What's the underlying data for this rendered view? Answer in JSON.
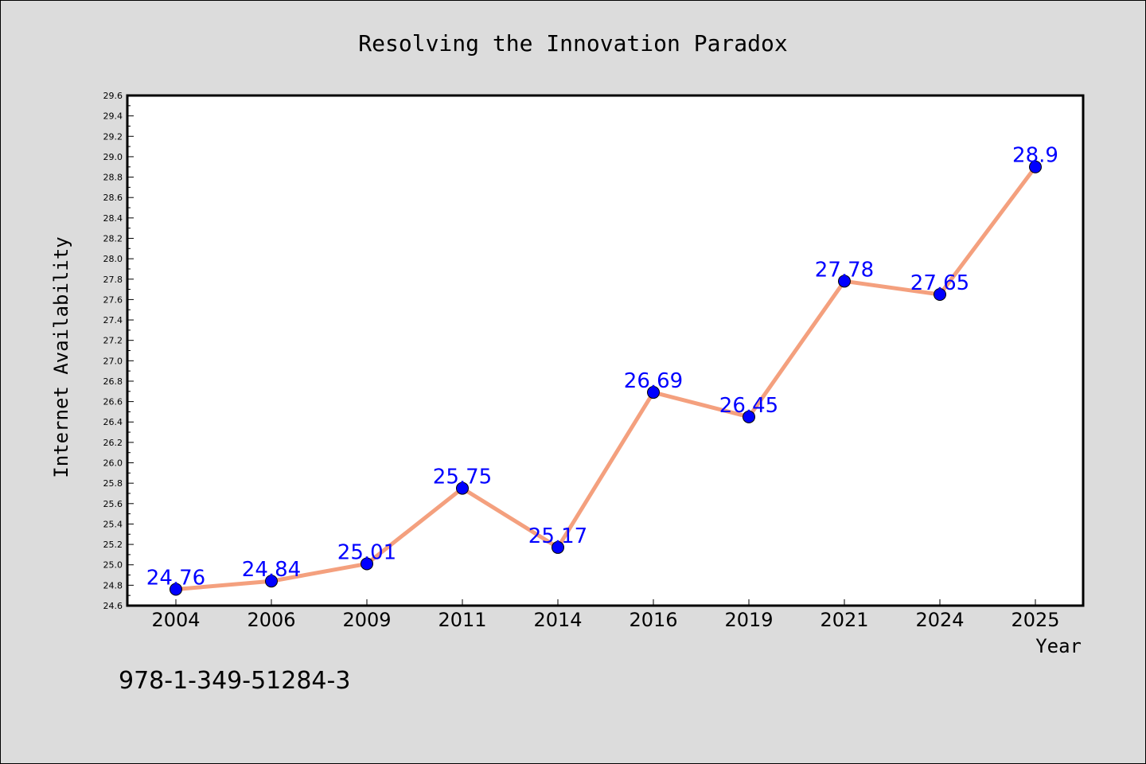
{
  "chart_data": {
    "type": "line",
    "title": "Resolving the Innovation Paradox",
    "xlabel": "Year",
    "ylabel": "Internet Availability",
    "categories": [
      "2004",
      "2006",
      "2009",
      "2011",
      "2014",
      "2016",
      "2019",
      "2021",
      "2024",
      "2025"
    ],
    "values": [
      24.76,
      24.84,
      25.01,
      25.75,
      25.17,
      26.69,
      26.45,
      27.78,
      27.65,
      28.9
    ],
    "data_labels": [
      "24.76",
      "24.84",
      "25.01",
      "25.75",
      "25.17",
      "26.69",
      "26.45",
      "27.78",
      "27.65",
      "28.9"
    ],
    "ylim": [
      24.6,
      29.6
    ],
    "yticks": [
      "24.6",
      "24.8",
      "25.0",
      "25.2",
      "25.4",
      "25.6",
      "25.8",
      "26.0",
      "26.2",
      "26.4",
      "26.6",
      "26.8",
      "27.0",
      "27.2",
      "27.4",
      "27.6",
      "27.8",
      "28.0",
      "28.2",
      "28.4",
      "28.6",
      "28.8",
      "29.0",
      "29.2",
      "29.4",
      "29.6"
    ],
    "grid": false,
    "line_color": "#f4a07e",
    "marker_color": "#0000ff",
    "label_color": "#0000ff"
  },
  "footer": {
    "isbn": "978-1-349-51284-3"
  }
}
